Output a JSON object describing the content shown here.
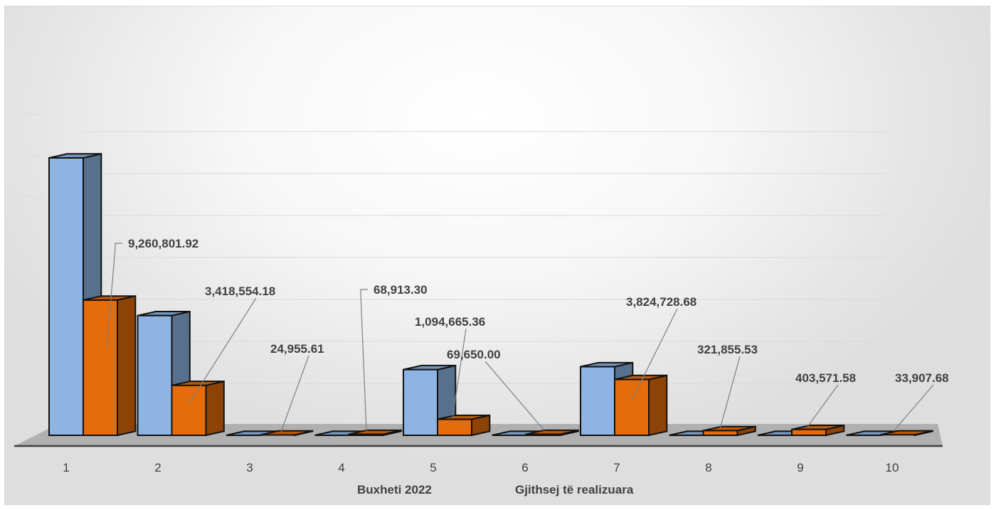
{
  "chart_data": {
    "type": "bar",
    "categories": [
      "1",
      "2",
      "3",
      "4",
      "5",
      "6",
      "7",
      "8",
      "9",
      "10"
    ],
    "series": [
      {
        "name": "Buxheti  2022",
        "color": "#8db4e2",
        "values": [
          19000000,
          8200000,
          0,
          0,
          4500000,
          0,
          4700000,
          0,
          0,
          0
        ]
      },
      {
        "name": "Gjithsej të realizuara",
        "color": "#e46c0a",
        "values": [
          9260801.92,
          3418554.18,
          24955.61,
          68913.3,
          1094665.36,
          69650.0,
          3824728.68,
          321855.53,
          403571.58,
          33907.68
        ]
      }
    ],
    "data_labels": [
      "9,260,801.92",
      "3,418,554.18",
      "24,955.61",
      "68,913.30",
      "1,094,665.36",
      "69,650.00",
      "3,824,728.68",
      "321,855.53",
      "403,571.58",
      "33,907.68"
    ],
    "bar_style": "3d-clustered-column",
    "grid": true,
    "legend_position": "bottom"
  }
}
